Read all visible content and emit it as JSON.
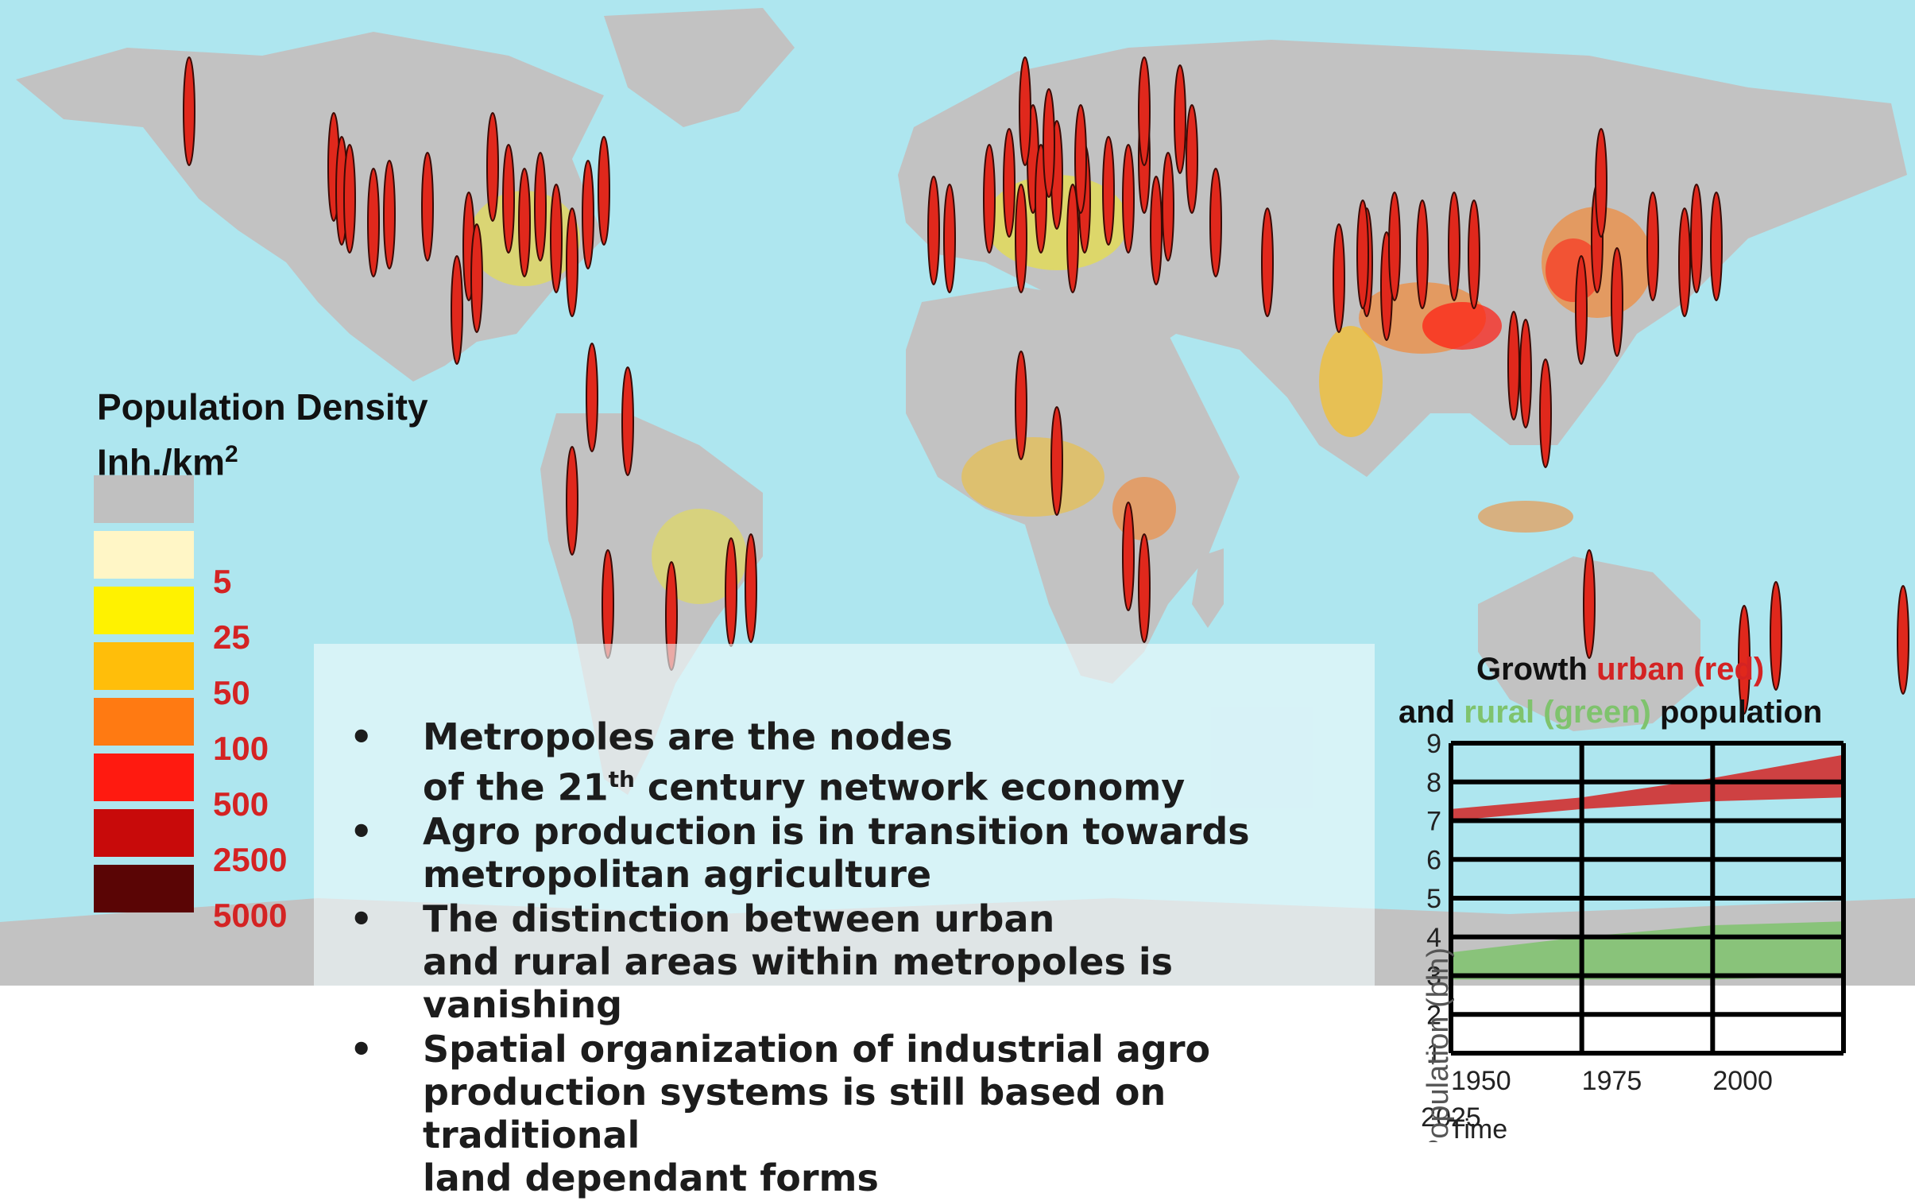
{
  "legend": {
    "title": "Population Density",
    "unit_base": "Inh./km",
    "unit_exp": "2",
    "items": [
      {
        "color": "#c0c0c0",
        "label": ""
      },
      {
        "color": "#fff6c6",
        "label": "5"
      },
      {
        "color": "#fff200",
        "label": "25"
      },
      {
        "color": "#ffbe0a",
        "label": "50"
      },
      {
        "color": "#ff7a12",
        "label": "100"
      },
      {
        "color": "#ff1a10",
        "label": "500"
      },
      {
        "color": "#c80a0a",
        "label": "2500"
      },
      {
        "color": "#5a0505",
        "label": "5000"
      }
    ]
  },
  "bullets": [
    {
      "line1": "Metropoles are the nodes",
      "line2_pre": "of the 21",
      "line2_sup": "th",
      "line2_post": " century network economy"
    },
    {
      "line1": "Agro production is in transition towards",
      "line2_pre": "metropolitan agriculture",
      "line2_sup": "",
      "line2_post": ""
    },
    {
      "line1": "The distinction between urban",
      "line2_pre": "and rural areas within metropoles is vanishing",
      "line2_sup": "",
      "line2_post": ""
    },
    {
      "line1": "Spatial organization of industrial agro",
      "line2_pre": "production systems is still based on traditional",
      "line2_sup": "",
      "line2_post": "",
      "line3": "land dependant forms"
    }
  ],
  "bullet_marker": "•",
  "chart_title": {
    "l1_a": "Growth ",
    "l1_b": "urban (red)",
    "l2_a": "and ",
    "l2_b": "rural (green)",
    "l2_c": " population"
  },
  "chart_data": {
    "type": "area",
    "ylabel": "Population (bln)",
    "xlabel": "Time",
    "xlim": [
      1950,
      2025
    ],
    "ylim": [
      1,
      9
    ],
    "y_ticks": [
      1,
      2,
      3,
      4,
      5,
      6,
      7,
      8,
      9
    ],
    "x_ticks": [
      "1950",
      "1975",
      "2000",
      "2025"
    ],
    "series": [
      {
        "name": "urban",
        "color": "#d42323",
        "x": [
          1950,
          1975,
          2000,
          2025
        ],
        "upper": [
          7.3,
          7.6,
          8.1,
          8.7
        ],
        "lower": [
          7.0,
          7.3,
          7.5,
          7.6
        ]
      },
      {
        "name": "rural",
        "color": "#7fc36d",
        "x": [
          1950,
          1975,
          2000,
          2025
        ],
        "upper": [
          3.6,
          4.0,
          4.3,
          4.4
        ],
        "lower": [
          2.9,
          2.9,
          2.9,
          3.0
        ]
      }
    ]
  },
  "colors": {
    "ocean": "#aee6ef",
    "land": "#c2c2c2",
    "marker": "#e0281c"
  }
}
